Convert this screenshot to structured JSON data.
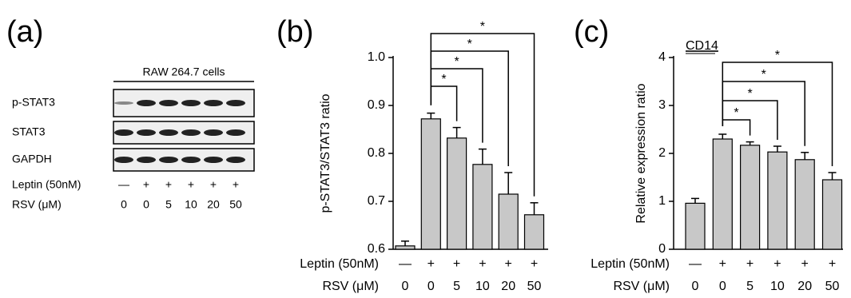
{
  "blot": {
    "panel": "(a)",
    "header": "RAW 264.7 cells",
    "rows": [
      "p-STAT3",
      "STAT3",
      "GAPDH"
    ],
    "leptin_label": "Leptin (50nM)",
    "leptin": [
      "—",
      "+",
      "+",
      "+",
      "+",
      "+"
    ],
    "rsv_label": "RSV (μM)",
    "rsv": [
      "0",
      "0",
      "5",
      "10",
      "20",
      "50"
    ]
  },
  "chart_data": [
    {
      "type": "bar",
      "panel": "(b)",
      "y_label": "p-STAT3/STAT3 ratio",
      "leptin_label": "Leptin (50nM)",
      "leptin": [
        "—",
        "+",
        "+",
        "+",
        "+",
        "+"
      ],
      "rsv_label": "RSV (μM)",
      "rsv": [
        "0",
        "0",
        "5",
        "10",
        "20",
        "50"
      ],
      "values": [
        0.607,
        0.872,
        0.832,
        0.777,
        0.715,
        0.672
      ],
      "errors": [
        0.01,
        0.012,
        0.022,
        0.032,
        0.045,
        0.025
      ],
      "color": "#c8c8c8",
      "ylim": [
        0.6,
        1.0
      ],
      "yticks": [
        0.6,
        0.7,
        0.8,
        0.9,
        {
          "value": 1.0,
          "label": "1.0"
        }
      ],
      "significance": [
        {
          "from": 1,
          "to": 2,
          "label": "*"
        },
        {
          "from": 1,
          "to": 3,
          "label": "*"
        },
        {
          "from": 1,
          "to": 4,
          "label": "*"
        },
        {
          "from": 1,
          "to": 5,
          "label": "*"
        }
      ]
    },
    {
      "type": "bar",
      "panel": "(c)",
      "subtitle": "CD14",
      "y_label": "Relative expression ratio",
      "leptin_label": "Leptin (50nM)",
      "leptin": [
        "—",
        "+",
        "+",
        "+",
        "+",
        "+"
      ],
      "rsv_label": "RSV (μM)",
      "rsv": [
        "0",
        "0",
        "5",
        "10",
        "20",
        "50"
      ],
      "values": [
        0.96,
        2.3,
        2.17,
        2.03,
        1.87,
        1.45
      ],
      "errors": [
        0.1,
        0.1,
        0.07,
        0.12,
        0.15,
        0.15
      ],
      "color": "#c8c8c8",
      "ylim": [
        0,
        4
      ],
      "yticks": [
        0,
        1,
        2,
        3,
        4
      ],
      "significance": [
        {
          "from": 1,
          "to": 2,
          "label": "*"
        },
        {
          "from": 1,
          "to": 3,
          "label": "*"
        },
        {
          "from": 1,
          "to": 4,
          "label": "*"
        },
        {
          "from": 1,
          "to": 5,
          "label": "*"
        }
      ]
    }
  ]
}
